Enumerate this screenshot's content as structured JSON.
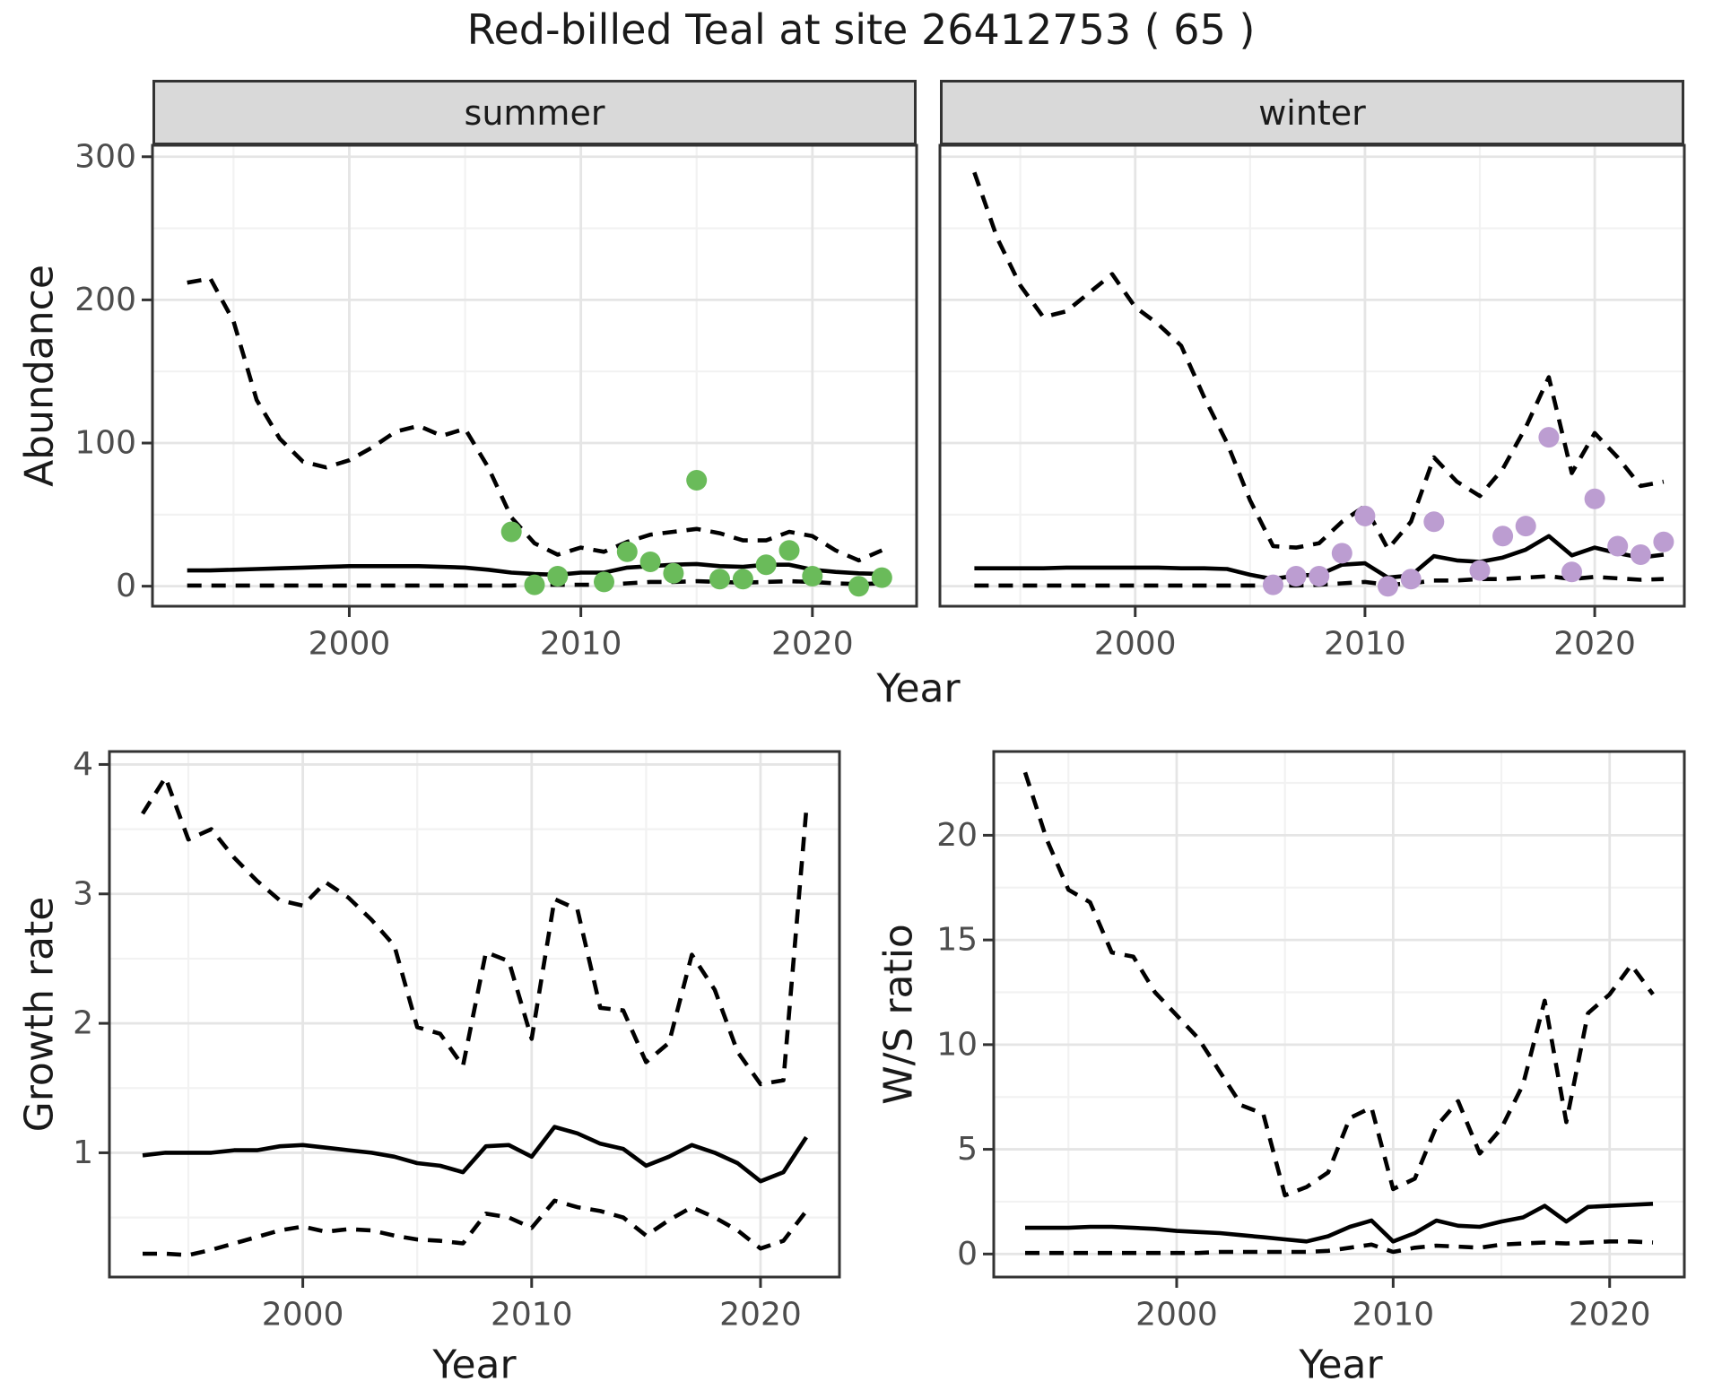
{
  "title": "Red-billed Teal at site 26412753 ( 65 )",
  "facets": [
    {
      "label": "summer"
    },
    {
      "label": "winter"
    }
  ],
  "axis_titles": {
    "y_top": "Abundance",
    "x_shared": "Year",
    "y_growth": "Growth rate",
    "y_ws": "W/S ratio",
    "x_growth": "Year",
    "x_ws": "Year"
  },
  "colors": {
    "observed_summer": "#6abb5a",
    "observed_winter": "#bc9dd1",
    "line": "#000000",
    "strip_background": "#d9d9d9",
    "panel_border": "#333333",
    "tick_label": "#4d4d4d",
    "grid_major": "#e5e5e5",
    "grid_minor": "#f2f2f2"
  },
  "chart_data": [
    {
      "id": "abundance_summer",
      "type": "line",
      "facet": "summer",
      "xlabel": "Year",
      "ylabel": "Abundance",
      "xlim": [
        1991.5,
        2024.5
      ],
      "ylim": [
        -14,
        308
      ],
      "xticks": [
        2000,
        2010,
        2020
      ],
      "xticks_minor": [
        1995,
        2005,
        2015
      ],
      "yticks": [
        0,
        100,
        200,
        300
      ],
      "yticks_minor": [
        50,
        150,
        250
      ],
      "grid": true,
      "legend": "none",
      "years": [
        1993,
        1994,
        1995,
        1996,
        1997,
        1998,
        1999,
        2000,
        2001,
        2002,
        2003,
        2004,
        2005,
        2006,
        2007,
        2008,
        2009,
        2010,
        2011,
        2012,
        2013,
        2014,
        2015,
        2016,
        2017,
        2018,
        2019,
        2020,
        2021,
        2022,
        2023
      ],
      "series": [
        {
          "name": "upper-ci",
          "style": "dashed",
          "values": [
            212,
            215,
            185,
            130,
            103,
            87,
            83,
            88,
            97,
            108,
            112,
            105,
            110,
            83,
            48,
            30,
            22,
            27,
            24,
            31,
            36,
            38,
            40,
            37,
            32,
            32,
            38,
            35,
            25,
            18,
            25
          ]
        },
        {
          "name": "median",
          "style": "solid",
          "values": [
            11,
            11,
            11.5,
            12,
            12.5,
            13,
            13.5,
            14,
            14,
            14,
            14,
            13.5,
            13,
            11.5,
            9.5,
            8.5,
            8,
            9.5,
            9.5,
            13,
            14,
            15,
            15.5,
            14,
            13.5,
            15,
            15,
            11.5,
            10,
            9,
            8.5
          ]
        },
        {
          "name": "lower-ci",
          "style": "dashed",
          "values": [
            0.5,
            0.5,
            0.5,
            0.5,
            0.5,
            0.5,
            0.5,
            0.5,
            0.5,
            0.5,
            0.5,
            0.5,
            0.5,
            0.5,
            0.5,
            1,
            1,
            1,
            1,
            2,
            3,
            3,
            3.5,
            3,
            2.5,
            3,
            3.5,
            3,
            2,
            1.5,
            2
          ]
        }
      ],
      "points": {
        "name": "observed-counts-summer",
        "color": "#6abb5a",
        "x": [
          2007,
          2008,
          2009,
          2011,
          2012,
          2013,
          2014,
          2015,
          2016,
          2017,
          2018,
          2019,
          2020,
          2022,
          2023
        ],
        "y": [
          38,
          1,
          7,
          3,
          24,
          17,
          9,
          74,
          5,
          5,
          15,
          25,
          7,
          0,
          6
        ]
      }
    },
    {
      "id": "abundance_winter",
      "type": "line",
      "facet": "winter",
      "xlabel": "Year",
      "ylabel": "Abundance",
      "xlim": [
        1991.5,
        2023.9
      ],
      "ylim": [
        -14,
        308
      ],
      "xticks": [
        2000,
        2010,
        2020
      ],
      "xticks_minor": [
        1995,
        2005,
        2015
      ],
      "yticks": [
        0,
        100,
        200,
        300
      ],
      "yticks_minor": [
        50,
        150,
        250
      ],
      "grid": true,
      "legend": "none",
      "years": [
        1993,
        1994,
        1995,
        1996,
        1997,
        1998,
        1999,
        2000,
        2001,
        2002,
        2003,
        2004,
        2005,
        2006,
        2007,
        2008,
        2009,
        2010,
        2011,
        2012,
        2013,
        2014,
        2015,
        2016,
        2017,
        2018,
        2019,
        2020,
        2021,
        2022,
        2023
      ],
      "series": [
        {
          "name": "upper-ci",
          "style": "dashed",
          "values": [
            289,
            243,
            210,
            188,
            192,
            205,
            218,
            195,
            183,
            168,
            132,
            100,
            60,
            28,
            27,
            30,
            45,
            56,
            26,
            45,
            90,
            73,
            63,
            82,
            111,
            146,
            79,
            107,
            90,
            70,
            73
          ]
        },
        {
          "name": "median",
          "style": "solid",
          "values": [
            12.5,
            12.5,
            12.5,
            12.5,
            13,
            13,
            13,
            13,
            13,
            12.5,
            12.5,
            12,
            8,
            5,
            7.5,
            8,
            15,
            16,
            6,
            7.5,
            21,
            18,
            17,
            20,
            25.5,
            35,
            21.5,
            27,
            23,
            20,
            22
          ]
        },
        {
          "name": "lower-ci",
          "style": "dashed",
          "values": [
            0.5,
            0.5,
            0.5,
            0.5,
            0.5,
            0.5,
            0.5,
            0.5,
            0.5,
            0.5,
            0.5,
            0.5,
            0.5,
            0.5,
            0.5,
            1,
            2,
            3,
            1,
            2,
            4,
            4,
            5,
            5,
            6,
            7,
            5,
            6.5,
            5.5,
            4.5,
            5
          ]
        }
      ],
      "points": {
        "name": "observed-counts-winter",
        "color": "#bc9dd1",
        "x": [
          2006,
          2007,
          2008,
          2009,
          2010,
          2011,
          2012,
          2013,
          2015,
          2016,
          2017,
          2018,
          2019,
          2020,
          2021,
          2022,
          2023
        ],
        "y": [
          1,
          7,
          7,
          23,
          49,
          0,
          5,
          45,
          11,
          35,
          42,
          104,
          10,
          61,
          28,
          22,
          31
        ]
      }
    },
    {
      "id": "growth_rate",
      "type": "line",
      "facet": null,
      "xlabel": "Year",
      "ylabel": "Growth rate",
      "xlim": [
        1991.55,
        2023.45
      ],
      "ylim": [
        0.04,
        4.1
      ],
      "xticks": [
        2000,
        2010,
        2020
      ],
      "xticks_minor": [
        1995,
        2005,
        2015
      ],
      "yticks": [
        1,
        2,
        3,
        4
      ],
      "yticks_minor": [
        0.5,
        1.5,
        2.5,
        3.5
      ],
      "grid": true,
      "legend": "none",
      "years": [
        1993,
        1994,
        1995,
        1996,
        1997,
        1998,
        1999,
        2000,
        2001,
        2002,
        2003,
        2004,
        2005,
        2006,
        2007,
        2008,
        2009,
        2010,
        2011,
        2012,
        2013,
        2014,
        2015,
        2016,
        2017,
        2018,
        2019,
        2020,
        2021,
        2022
      ],
      "series": [
        {
          "name": "upper-ci",
          "style": "dashed",
          "values": [
            3.62,
            3.9,
            3.42,
            3.5,
            3.28,
            3.1,
            2.95,
            2.91,
            3.09,
            2.97,
            2.8,
            2.6,
            1.97,
            1.92,
            1.67,
            2.55,
            2.48,
            1.88,
            2.96,
            2.88,
            2.12,
            2.1,
            1.7,
            1.85,
            2.53,
            2.26,
            1.78,
            1.53,
            1.56,
            3.65
          ]
        },
        {
          "name": "median",
          "style": "solid",
          "values": [
            0.98,
            1.0,
            1.0,
            1.0,
            1.02,
            1.02,
            1.05,
            1.06,
            1.04,
            1.02,
            1.0,
            0.97,
            0.92,
            0.9,
            0.85,
            1.05,
            1.06,
            0.97,
            1.2,
            1.15,
            1.07,
            1.03,
            0.9,
            0.97,
            1.06,
            1.0,
            0.92,
            0.78,
            0.85,
            1.12
          ]
        },
        {
          "name": "lower-ci",
          "style": "dashed",
          "values": [
            0.22,
            0.22,
            0.21,
            0.25,
            0.3,
            0.35,
            0.4,
            0.43,
            0.39,
            0.41,
            0.4,
            0.36,
            0.33,
            0.32,
            0.3,
            0.53,
            0.5,
            0.42,
            0.63,
            0.58,
            0.55,
            0.5,
            0.36,
            0.48,
            0.58,
            0.5,
            0.4,
            0.26,
            0.32,
            0.55
          ]
        }
      ],
      "points": null
    },
    {
      "id": "ws_ratio",
      "type": "line",
      "facet": null,
      "xlabel": "Year",
      "ylabel": "W/S ratio",
      "xlim": [
        1991.55,
        2023.45
      ],
      "ylim": [
        -1.1,
        24.0
      ],
      "xticks": [
        2000,
        2010,
        2020
      ],
      "xticks_minor": [
        1995,
        2005,
        2015
      ],
      "yticks": [
        0,
        5,
        10,
        15,
        20
      ],
      "yticks_minor": [
        2.5,
        7.5,
        12.5,
        17.5,
        22.5
      ],
      "grid": true,
      "legend": "none",
      "years": [
        1993,
        1994,
        1995,
        1996,
        1997,
        1998,
        1999,
        2000,
        2001,
        2002,
        2003,
        2004,
        2005,
        2006,
        2007,
        2008,
        2009,
        2010,
        2011,
        2012,
        2013,
        2014,
        2015,
        2016,
        2017,
        2018,
        2019,
        2020,
        2021,
        2022
      ],
      "series": [
        {
          "name": "upper-ci",
          "style": "dashed",
          "values": [
            23.0,
            19.8,
            17.4,
            16.8,
            14.4,
            14.2,
            12.5,
            11.4,
            10.3,
            8.7,
            7.1,
            6.7,
            2.8,
            3.2,
            3.9,
            6.5,
            7.0,
            3.1,
            3.6,
            6.1,
            7.3,
            4.8,
            6.0,
            8.1,
            12.1,
            6.3,
            11.5,
            12.4,
            13.8,
            12.4
          ]
        },
        {
          "name": "median",
          "style": "solid",
          "values": [
            1.25,
            1.25,
            1.25,
            1.3,
            1.3,
            1.25,
            1.2,
            1.1,
            1.05,
            1.0,
            0.9,
            0.8,
            0.7,
            0.6,
            0.85,
            1.3,
            1.6,
            0.6,
            1.0,
            1.6,
            1.35,
            1.3,
            1.55,
            1.75,
            2.3,
            1.55,
            2.25,
            2.3,
            2.35,
            2.4
          ]
        },
        {
          "name": "lower-ci",
          "style": "dashed",
          "values": [
            0.05,
            0.05,
            0.05,
            0.05,
            0.05,
            0.05,
            0.05,
            0.05,
            0.05,
            0.1,
            0.1,
            0.1,
            0.1,
            0.1,
            0.15,
            0.3,
            0.45,
            0.1,
            0.3,
            0.4,
            0.35,
            0.3,
            0.45,
            0.5,
            0.55,
            0.5,
            0.55,
            0.6,
            0.6,
            0.55
          ]
        }
      ],
      "points": null
    }
  ]
}
